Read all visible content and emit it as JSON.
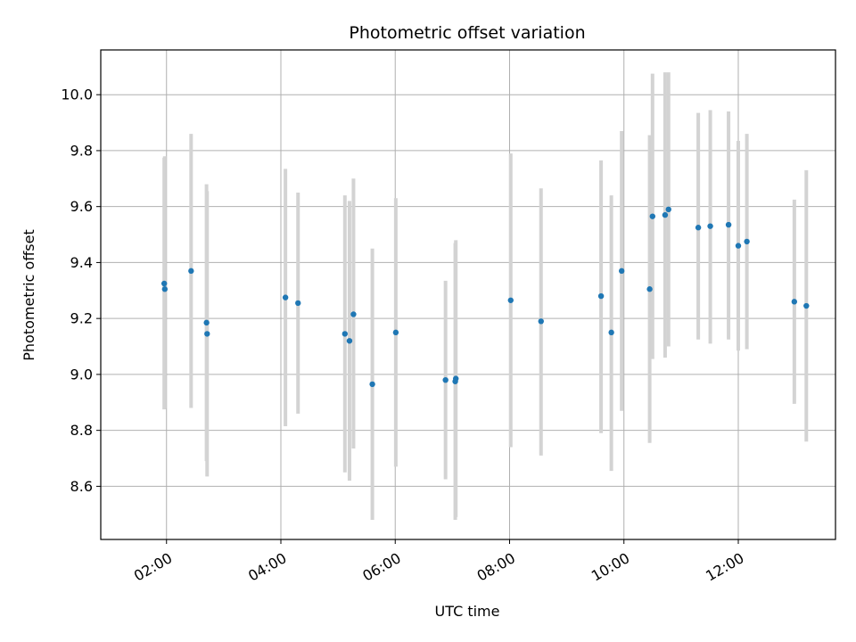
{
  "chart_data": {
    "type": "scatter",
    "title": "Photometric offset variation",
    "xlabel": "UTC time",
    "ylabel": "Photometric offset",
    "xlim_hours": [
      0.85,
      13.7
    ],
    "ylim": [
      8.41,
      10.16
    ],
    "grid": true,
    "x_ticks": [
      {
        "hour": 2,
        "label": "02:00"
      },
      {
        "hour": 4,
        "label": "04:00"
      },
      {
        "hour": 6,
        "label": "06:00"
      },
      {
        "hour": 8,
        "label": "08:00"
      },
      {
        "hour": 10,
        "label": "10:00"
      },
      {
        "hour": 12,
        "label": "12:00"
      }
    ],
    "y_ticks": [
      {
        "value": 8.6,
        "label": "8.6"
      },
      {
        "value": 8.8,
        "label": "8.8"
      },
      {
        "value": 9.0,
        "label": "9.0"
      },
      {
        "value": 9.2,
        "label": "9.2"
      },
      {
        "value": 9.4,
        "label": "9.4"
      },
      {
        "value": 9.6,
        "label": "9.6"
      },
      {
        "value": 9.8,
        "label": "9.8"
      },
      {
        "value": 10.0,
        "label": "10.0"
      }
    ],
    "points": [
      {
        "t": 1.96,
        "y": 9.325,
        "err_lo": 8.875,
        "err_hi": 9.775
      },
      {
        "t": 1.97,
        "y": 9.305,
        "err_lo": 8.88,
        "err_hi": 9.78
      },
      {
        "t": 2.43,
        "y": 9.37,
        "err_lo": 8.88,
        "err_hi": 9.86
      },
      {
        "t": 2.7,
        "y": 9.185,
        "err_lo": 8.69,
        "err_hi": 9.68
      },
      {
        "t": 2.71,
        "y": 9.145,
        "err_lo": 8.635,
        "err_hi": 9.655
      },
      {
        "t": 4.08,
        "y": 9.275,
        "err_lo": 8.815,
        "err_hi": 9.735
      },
      {
        "t": 4.3,
        "y": 9.255,
        "err_lo": 8.86,
        "err_hi": 9.65
      },
      {
        "t": 5.12,
        "y": 9.145,
        "err_lo": 8.65,
        "err_hi": 9.64
      },
      {
        "t": 5.2,
        "y": 9.12,
        "err_lo": 8.62,
        "err_hi": 9.62
      },
      {
        "t": 5.27,
        "y": 9.215,
        "err_lo": 8.735,
        "err_hi": 9.7
      },
      {
        "t": 5.6,
        "y": 8.965,
        "err_lo": 8.48,
        "err_hi": 9.45
      },
      {
        "t": 6.01,
        "y": 9.15,
        "err_lo": 8.67,
        "err_hi": 9.63
      },
      {
        "t": 6.88,
        "y": 8.98,
        "err_lo": 8.625,
        "err_hi": 9.335
      },
      {
        "t": 7.05,
        "y": 8.975,
        "err_lo": 8.48,
        "err_hi": 9.47
      },
      {
        "t": 7.06,
        "y": 8.985,
        "err_lo": 8.49,
        "err_hi": 9.48
      },
      {
        "t": 8.02,
        "y": 9.265,
        "err_lo": 8.74,
        "err_hi": 9.79
      },
      {
        "t": 8.55,
        "y": 9.19,
        "err_lo": 8.71,
        "err_hi": 9.665
      },
      {
        "t": 9.6,
        "y": 9.28,
        "err_lo": 8.79,
        "err_hi": 9.765
      },
      {
        "t": 9.78,
        "y": 9.15,
        "err_lo": 8.655,
        "err_hi": 9.64
      },
      {
        "t": 9.96,
        "y": 9.37,
        "err_lo": 8.87,
        "err_hi": 9.87
      },
      {
        "t": 10.45,
        "y": 9.305,
        "err_lo": 8.755,
        "err_hi": 9.855
      },
      {
        "t": 10.5,
        "y": 9.565,
        "err_lo": 9.055,
        "err_hi": 10.075
      },
      {
        "t": 10.72,
        "y": 9.57,
        "err_lo": 9.06,
        "err_hi": 10.08
      },
      {
        "t": 10.78,
        "y": 9.59,
        "err_lo": 9.1,
        "err_hi": 10.08
      },
      {
        "t": 11.3,
        "y": 9.525,
        "err_lo": 9.125,
        "err_hi": 9.935
      },
      {
        "t": 11.51,
        "y": 9.53,
        "err_lo": 9.11,
        "err_hi": 9.945
      },
      {
        "t": 11.83,
        "y": 9.535,
        "err_lo": 9.125,
        "err_hi": 9.94
      },
      {
        "t": 12.0,
        "y": 9.46,
        "err_lo": 9.085,
        "err_hi": 9.835
      },
      {
        "t": 12.15,
        "y": 9.475,
        "err_lo": 9.09,
        "err_hi": 9.86
      },
      {
        "t": 12.98,
        "y": 9.26,
        "err_lo": 8.895,
        "err_hi": 9.625
      },
      {
        "t": 13.19,
        "y": 9.245,
        "err_lo": 8.76,
        "err_hi": 9.73
      }
    ],
    "colors": {
      "point": "#1f77b4",
      "errorbar": "#d3d3d3",
      "grid": "#b0b0b0",
      "axes": "#000000"
    }
  }
}
